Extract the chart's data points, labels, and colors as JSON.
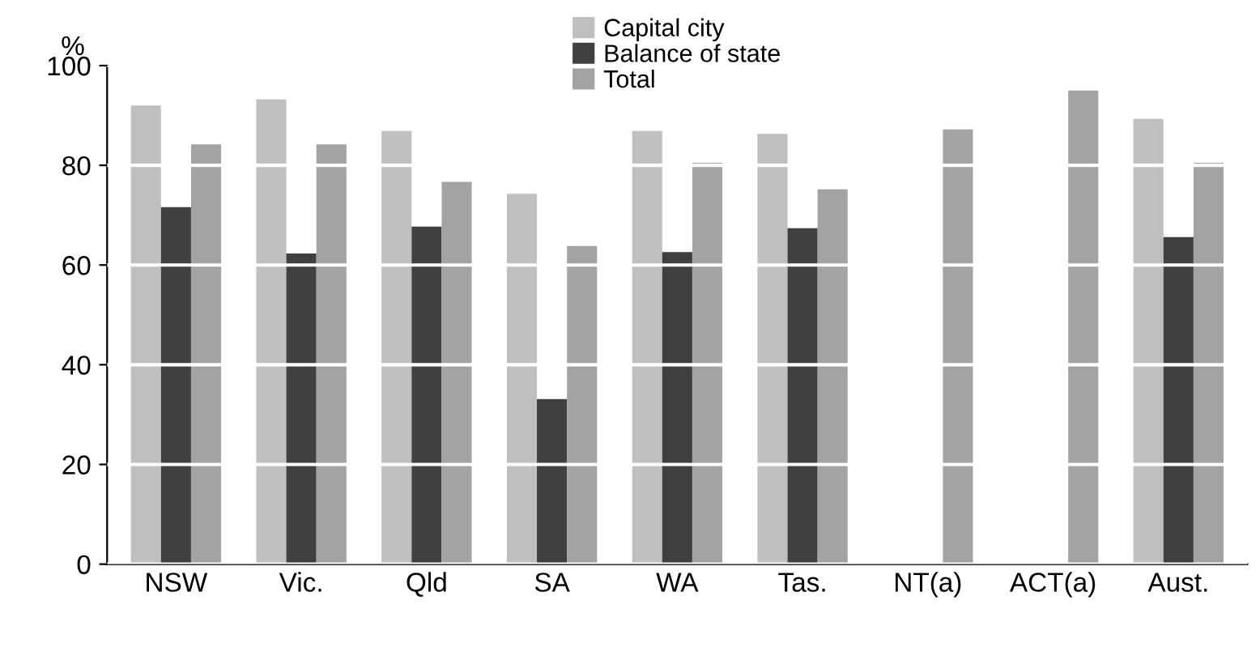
{
  "chart_data": {
    "type": "bar",
    "ylabel": "%",
    "categories": [
      "NSW",
      "Vic.",
      "Qld",
      "SA",
      "WA",
      "Tas.",
      "NT(a)",
      "ACT(a)",
      "Aust."
    ],
    "series": [
      {
        "name": "Capital city",
        "color": "#bfbfbf",
        "values": [
          92.0,
          93.2,
          86.9,
          74.3,
          86.9,
          86.3,
          null,
          null,
          89.3
        ]
      },
      {
        "name": "Balance of state",
        "color": "#404040",
        "values": [
          71.6,
          62.3,
          67.7,
          33.1,
          62.6,
          67.4,
          null,
          null,
          65.6
        ]
      },
      {
        "name": "Total",
        "color": "#a3a3a3",
        "values": [
          84.2,
          84.2,
          76.7,
          63.8,
          80.5,
          75.2,
          87.2,
          95.0,
          80.5
        ]
      }
    ],
    "ylim": [
      0,
      100
    ],
    "yticks": [
      0,
      20,
      40,
      60,
      80,
      100
    ],
    "grid": "y",
    "legend": "top"
  }
}
